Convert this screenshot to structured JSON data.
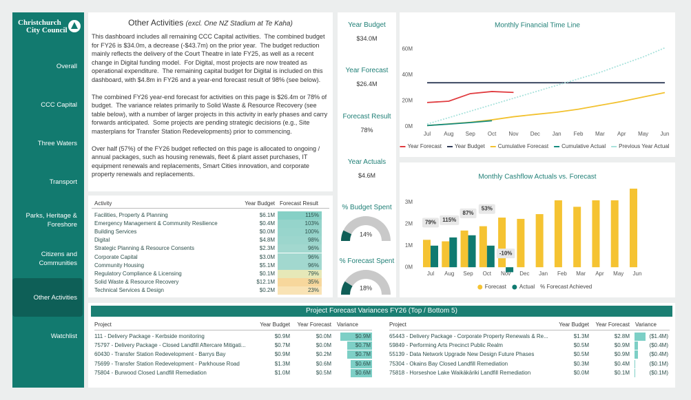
{
  "sidebar": {
    "logo": [
      "Christchurch",
      "City Council"
    ],
    "nav": [
      "Overall",
      "CCC Capital",
      "Three Waters",
      "Transport",
      "Parks, Heritage & Foreshore",
      "Citizens and Communities",
      "Other Activities",
      "Watchlist"
    ],
    "active": 6
  },
  "intro": {
    "title": "Other Activities",
    "subtitle": "(excl. One NZ Stadium at Te Kaha)",
    "paragraphs": [
      "This dashboard includes all remaining CCC Capital activities.  The combined budget for FY26 is $34.0m, a decrease (-$43.7m) on the prior year.  The budget reduction mainly reflects the delivery of the Court Theatre in late FY25, as well as a recent change in Digital funding model.  For Digital, most projects are now treated as operational expenditure.  The remaining capital budget for Digital is included on this dashboard, with $4.8m in FY26 and a year-end forecast result of 98% (see below).",
      "The combined FY26 year-end forecast for activities on this page is $26.4m or 78% of budget.  The variance relates primarily to Solid Waste & Resource Recovery (see table below), with a number of larger projects in this activity in early phases and carry forwards anticipated.  Some projects are pending strategic decisions (e.g., Site masterplans for Transfer Station Redevelopments) prior to commencing.",
      "Over half (57%) of the FY26 budget reflected on this page is allocated to ongoing / annual packages, such as housing renewals, fleet & plant asset purchases, IT equipment renewals and replacements, Smart Cities innovation, and corporate property renewals and replacements."
    ]
  },
  "activity_table": {
    "columns": [
      "Activity",
      "Year Budget",
      "Forecast Result"
    ],
    "rows": [
      [
        "Facilities, Property & Planning",
        "$6.1M",
        "115%"
      ],
      [
        "Emergency Management & Community Resilience",
        "$0.4M",
        "103%"
      ],
      [
        "Building Services",
        "$0.0M",
        "100%"
      ],
      [
        "Digital",
        "$4.8M",
        "98%"
      ],
      [
        "Strategic Planning & Resource Consents",
        "$2.3M",
        "96%"
      ],
      [
        "Corporate Capital",
        "$3.0M",
        "96%"
      ],
      [
        "Community Housing",
        "$5.1M",
        "96%"
      ],
      [
        "Regulatory Compliance & Licensing",
        "$0.1M",
        "79%"
      ],
      [
        "Solid Waste & Resource Recovery",
        "$12.1M",
        "35%"
      ],
      [
        "Technical Services & Design",
        "$0.2M",
        "23%"
      ]
    ],
    "result_colors": [
      "#86d0c6",
      "#95d4cb",
      "#98d5cc",
      "#9cd6cd",
      "#a2d8cf",
      "#a2d8cf",
      "#a2d8cf",
      "#e6e8b8",
      "#f7d79c",
      "#f9e3b5"
    ]
  },
  "kpis": [
    {
      "label": "Year Budget",
      "value": "$34.0M"
    },
    {
      "label": "Year Forecast",
      "value": "$26.4M"
    },
    {
      "label": "Forecast Result",
      "value": "78%"
    },
    {
      "label": "Year Actuals",
      "value": "$4.6M"
    }
  ],
  "gauges": [
    {
      "title": "% Budget Spent",
      "value": 14,
      "value_label": "14%",
      "range": [
        0,
        100
      ],
      "color": "#0f5e57"
    },
    {
      "title": "% Forecast Spent",
      "value": 18,
      "value_label": "18%",
      "range": [
        0,
        100
      ],
      "color": "#0f5e57"
    }
  ],
  "chart_data": [
    {
      "type": "line",
      "title": "Monthly Financial Time Line",
      "categories": [
        "Jul",
        "Aug",
        "Sep",
        "Oct",
        "Nov",
        "Dec",
        "Jan",
        "Feb",
        "Mar",
        "Apr",
        "May",
        "Jun"
      ],
      "series": [
        {
          "name": "Year Forecast",
          "color": "#e03a3e",
          "values": [
            18.7,
            19.7,
            25.6,
            27.2,
            26.5,
            null,
            null,
            null,
            null,
            null,
            null,
            null
          ]
        },
        {
          "name": "Year Budget",
          "color": "#2f3b57",
          "values": [
            34,
            34,
            34,
            34,
            34,
            34,
            34,
            34,
            34,
            34,
            34,
            34
          ]
        },
        {
          "name": "Cumulative Forecast",
          "color": "#f2c12e",
          "values": [
            0.9,
            2.1,
            3.4,
            5.3,
            7.7,
            9.5,
            11.2,
            13.5,
            16.5,
            19.5,
            23,
            26.4
          ]
        },
        {
          "name": "Cumulative Actual",
          "color": "#138a7e",
          "values": [
            0.9,
            2.0,
            3.2,
            4.6,
            null,
            null,
            null,
            null,
            null,
            null,
            null,
            null
          ]
        },
        {
          "name": "Previous Year Actual",
          "color": "#a8e2dc",
          "line_style": "dotted",
          "values": [
            2,
            7,
            12,
            17,
            22,
            27,
            32,
            37,
            42,
            48,
            54,
            61
          ]
        }
      ],
      "ylim": [
        0,
        65
      ],
      "yticks": [
        {
          "value": 0,
          "label": "0M"
        },
        {
          "value": 20,
          "label": "20M"
        },
        {
          "value": 40,
          "label": "40M"
        },
        {
          "value": 60,
          "label": "60M"
        }
      ],
      "legend": "bottom"
    },
    {
      "type": "bar",
      "title": "Monthly Cashflow Actuals vs. Forecast",
      "categories": [
        "Jul",
        "Aug",
        "Sep",
        "Oct",
        "Nov",
        "Dec",
        "Jan",
        "Feb",
        "Mar",
        "Apr",
        "May",
        "Jun"
      ],
      "series": [
        {
          "name": "Forecast",
          "color": "#f5c332",
          "values": [
            1.27,
            1.2,
            1.7,
            1.9,
            2.3,
            2.24,
            2.46,
            3.1,
            2.8,
            3.1,
            3.1,
            3.64
          ]
        },
        {
          "name": "Actual",
          "color": "#0f7a70",
          "values": [
            1.0,
            1.38,
            1.48,
            1.0,
            -0.23,
            null,
            null,
            null,
            null,
            null,
            null,
            null
          ]
        }
      ],
      "achieved": {
        "name": "% Forecast Achieved",
        "values": [
          79,
          115,
          87,
          53,
          -10,
          null,
          null,
          null,
          null,
          null,
          null,
          null
        ],
        "value_labels": [
          "79%",
          "115%",
          "87%",
          "53%",
          "-10%",
          null,
          null,
          null,
          null,
          null,
          null,
          null
        ]
      },
      "ylim": [
        -0.25,
        3.8
      ],
      "yticks": [
        {
          "value": 0,
          "label": "0M"
        },
        {
          "value": 1,
          "label": "1M"
        },
        {
          "value": 2,
          "label": "2M"
        },
        {
          "value": 3,
          "label": "3M"
        }
      ],
      "legend": "bottom"
    }
  ],
  "variances": {
    "title": "Project Forecast Variances FY26 (Top / Bottom 5)",
    "columns": [
      "Project",
      "Year Budget",
      "Year Forecast",
      "Variance"
    ],
    "bar_color": "#7dcfc6",
    "tables": [
      {
        "rows": [
          [
            "111 - Delivery Package - Kerbside monitoring",
            "$0.9M",
            "$0.0M",
            "$0.9M"
          ],
          [
            "75797 - Delivery Package - Closed Landfill Aftercare Mitigati...",
            "$0.7M",
            "$0.0M",
            "$0.7M"
          ],
          [
            "60430 - Transfer Station Redevelopment - Barrys Bay",
            "$0.9M",
            "$0.2M",
            "$0.7M"
          ],
          [
            "75699 - Transfer Station Redevelopment - Parkhouse Road",
            "$1.3M",
            "$0.6M",
            "$0.6M"
          ],
          [
            "75804 - Burwood Closed Landfill Remediation",
            "$1.0M",
            "$0.5M",
            "$0.6M"
          ]
        ],
        "variance_values": [
          0.9,
          0.7,
          0.7,
          0.6,
          0.6
        ]
      },
      {
        "rows": [
          [
            "65443 - Delivery Package - Corporate Property Renewals & Re...",
            "$1.3M",
            "$2.8M",
            "($1.4M)"
          ],
          [
            "59849 - Performing Arts Precinct Public Realm",
            "$0.5M",
            "$0.9M",
            "($0.4M)"
          ],
          [
            "55139 - Data Network Upgrade New Design Future Phases",
            "$0.5M",
            "$0.9M",
            "($0.4M)"
          ],
          [
            "75304 - Okains Bay Closed Landfill Remediation",
            "$0.3M",
            "$0.4M",
            "($0.1M)"
          ],
          [
            "75818 - Horseshoe Lake Waikākāriki Landfill Remediation",
            "$0.0M",
            "$0.1M",
            "($0.1M)"
          ]
        ],
        "variance_values": [
          -1.4,
          -0.4,
          -0.4,
          -0.1,
          -0.1
        ]
      }
    ]
  }
}
